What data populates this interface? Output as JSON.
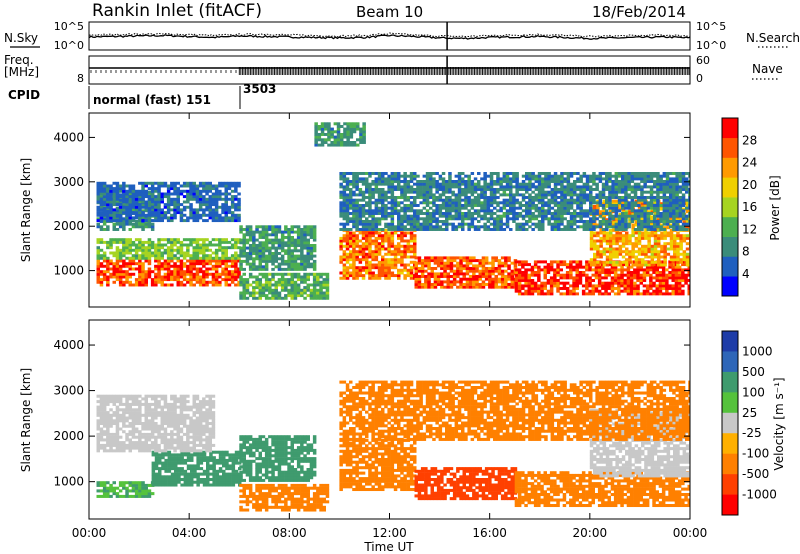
{
  "header": {
    "station": "Rankin Inlet (fitACF)",
    "beam": "Beam 10",
    "date": "18/Feb/2014"
  },
  "colors": {
    "power_scale": [
      "#0000ff",
      "#1f5fbf",
      "#3a8c7a",
      "#4caf50",
      "#a6d421",
      "#f0d000",
      "#ff9a00",
      "#ff5500",
      "#ff0000"
    ],
    "velocity_scale": [
      "#1e3ca8",
      "#2e66b8",
      "#3f9b6e",
      "#55c23c",
      "#c8c8c8",
      "#ffb000",
      "#ff8000",
      "#ff4000",
      "#ff0000"
    ],
    "ground_scatter": "#c8c8c8"
  },
  "chart_data": [
    {
      "type": "line",
      "panel": "noise",
      "ylabel_left": "N.Sky",
      "ylabel_right": "N.Search",
      "left_ticks": [
        "10^5",
        "10^0"
      ],
      "right_ticks": [
        "10^5",
        "10^0"
      ],
      "yscale": "log",
      "series": [
        {
          "values": [
            2.3,
            2.4,
            2.5,
            2.6,
            2.4,
            2.2,
            2.5,
            2.4,
            2.3,
            2.2,
            2.1,
            2.2,
            2.6,
            2.4,
            2.1,
            2.0,
            2.2,
            2.3,
            2.4,
            2.2,
            2.0,
            2.1,
            2.2,
            2.3,
            2.1
          ]
        },
        {
          "values": [
            2.7,
            2.8,
            2.9,
            2.9,
            2.8,
            2.6,
            2.8,
            2.9,
            2.7,
            2.6,
            2.5,
            2.6,
            3.0,
            2.7,
            2.5,
            2.4,
            2.6,
            2.7,
            2.8,
            2.6,
            2.4,
            2.5,
            2.6,
            2.7,
            2.5
          ]
        }
      ]
    },
    {
      "type": "line",
      "panel": "frequency",
      "ylabel_left": "Freq.",
      "ylabel_left_unit": "[MHz]",
      "ylabel_right": "Nave",
      "left_ticks": [
        "8"
      ],
      "right_ticks": [
        "60",
        "0"
      ],
      "values": [
        10.5,
        10.5,
        10.5,
        10.5,
        10.5,
        10.5,
        10.5,
        10.5,
        10.5,
        10.5,
        10.5,
        10.5,
        10.5,
        10.5,
        10.5,
        10.5,
        10.5,
        10.5,
        10.5,
        10.5,
        10.5,
        10.5,
        10.5,
        10.5,
        10.5
      ]
    },
    {
      "type": "table",
      "panel": "cpid",
      "label": "CPID",
      "entries": [
        {
          "start_hour": 0,
          "text": "normal (fast) 151"
        },
        {
          "start_hour": 6,
          "text": "3503"
        }
      ]
    },
    {
      "type": "heatmap",
      "panel": "power",
      "ylabel": "Slant Range [km]",
      "yticks": [
        1000,
        2000,
        3000,
        4000
      ],
      "ylim": [
        180,
        4550
      ],
      "xlim": [
        0,
        24
      ],
      "colorbar_label": "Power [dB]",
      "colorbar_ticks": [
        4,
        8,
        12,
        16,
        20,
        24,
        28
      ],
      "clim": [
        0,
        32
      ],
      "regions": [
        {
          "x": [
            0.3,
            6
          ],
          "y": [
            650,
            1250
          ],
          "value": 27
        },
        {
          "x": [
            0.3,
            6
          ],
          "y": [
            1250,
            1700
          ],
          "value": 14
        },
        {
          "x": [
            0.3,
            2.5
          ],
          "y": [
            1900,
            2800
          ],
          "value": 9
        },
        {
          "x": [
            0.3,
            6
          ],
          "y": [
            2100,
            3000
          ],
          "value": 6
        },
        {
          "x": [
            6,
            9
          ],
          "y": [
            1000,
            2000
          ],
          "value": 10
        },
        {
          "x": [
            6,
            9.5
          ],
          "y": [
            350,
            900
          ],
          "value": 12
        },
        {
          "x": [
            10,
            13
          ],
          "y": [
            800,
            1900
          ],
          "value": 25
        },
        {
          "x": [
            13,
            17
          ],
          "y": [
            600,
            1300
          ],
          "value": 27
        },
        {
          "x": [
            17,
            24
          ],
          "y": [
            450,
            1200
          ],
          "value": 29
        },
        {
          "x": [
            20,
            24
          ],
          "y": [
            1100,
            2600
          ],
          "value": 22
        },
        {
          "x": [
            10,
            24
          ],
          "y": [
            1900,
            3200
          ],
          "value": 8
        },
        {
          "x": [
            9,
            11
          ],
          "y": [
            3800,
            4300
          ],
          "value": 10
        }
      ]
    },
    {
      "type": "heatmap",
      "panel": "velocity",
      "ylabel": "Slant Range [km]",
      "yticks": [
        1000,
        2000,
        3000,
        4000
      ],
      "ylim": [
        180,
        4550
      ],
      "xlim": [
        0,
        24
      ],
      "xticks": [
        "00:00",
        "04:00",
        "08:00",
        "12:00",
        "16:00",
        "20:00",
        "00:00"
      ],
      "xlabel": "Time UT",
      "colorbar_label": "Velocity [m s⁻¹]",
      "colorbar_ticks": [
        "1000",
        "500",
        "100",
        "25",
        "-25",
        "-100",
        "-500",
        "-1000"
      ],
      "regions": [
        {
          "x": [
            0.3,
            2.5
          ],
          "y": [
            650,
            1000
          ],
          "value": 60
        },
        {
          "x": [
            2.5,
            6
          ],
          "y": [
            900,
            1650
          ],
          "value": 130
        },
        {
          "x": [
            0.3,
            5
          ],
          "y": [
            1650,
            2900
          ],
          "value": 0
        },
        {
          "x": [
            6,
            9
          ],
          "y": [
            1000,
            2000
          ],
          "value": 200
        },
        {
          "x": [
            6,
            9.5
          ],
          "y": [
            350,
            900
          ],
          "value": -150
        },
        {
          "x": [
            10,
            13
          ],
          "y": [
            800,
            1900
          ],
          "value": -300
        },
        {
          "x": [
            13,
            17
          ],
          "y": [
            600,
            1300
          ],
          "value": -600
        },
        {
          "x": [
            17,
            24
          ],
          "y": [
            450,
            1200
          ],
          "value": -400
        },
        {
          "x": [
            20,
            24
          ],
          "y": [
            1100,
            2600
          ],
          "value": 0
        },
        {
          "x": [
            10,
            24
          ],
          "y": [
            1900,
            3200
          ],
          "value": -120
        }
      ]
    }
  ]
}
